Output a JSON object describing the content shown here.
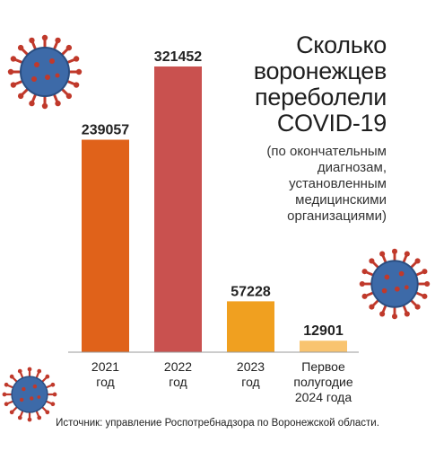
{
  "title": "Сколько\nворонежцев\nпереболели\nCOVID-19",
  "subtitle": "(по окончательным\nдиагнозам,\nустановленным\nмедицинскими\nорганизациями)",
  "source": "Источник: управление Роспотребнадзора по Воронежской области.",
  "icons": [
    "coronavirus-icon",
    "coronavirus-icon",
    "coronavirus-icon"
  ],
  "chart_data": {
    "type": "bar",
    "categories": [
      "2021\nгод",
      "2022\nгод",
      "2023\nгод",
      "Первое\nполугодие\n2024 года"
    ],
    "values": [
      239057,
      321452,
      57228,
      12901
    ],
    "value_labels": [
      "239057",
      "321452",
      "57228",
      "12901"
    ],
    "colors": [
      "#e0621a",
      "#c9514f",
      "#f0a020",
      "#f9c470"
    ],
    "ylim": [
      0,
      321452
    ],
    "grid": false,
    "legend": "none"
  }
}
